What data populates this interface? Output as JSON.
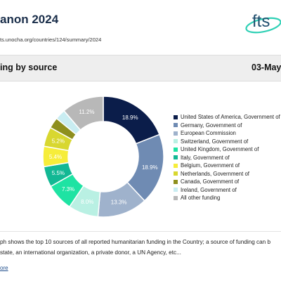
{
  "page": {
    "title": "anon 2024",
    "url": "ts.unocha.org/countries/124/summary/2024",
    "logo_text": "fts"
  },
  "section": {
    "title": "ing by source",
    "date": "03-May-"
  },
  "chart_data": {
    "type": "pie",
    "donut": true,
    "title": "",
    "slices": [
      {
        "label": "United States of America, Government of",
        "value": 18.9,
        "color": "#0b1d4a"
      },
      {
        "label": "Germany, Government of",
        "value": 18.9,
        "color": "#6f8bb3"
      },
      {
        "label": "European Commission",
        "value": 13.3,
        "color": "#9fb2cc"
      },
      {
        "label": "Switzerland, Government of",
        "value": 8.0,
        "color": "#b9f0e3"
      },
      {
        "label": "United Kingdom, Government of",
        "value": 7.3,
        "color": "#1ee3a3"
      },
      {
        "label": "Italy, Government of",
        "value": 5.5,
        "color": "#12b894"
      },
      {
        "label": "Belgium, Government of",
        "value": 5.4,
        "color": "#f6ed3a"
      },
      {
        "label": "Netherlands, Government of",
        "value": 5.2,
        "color": "#d8d730"
      },
      {
        "label": "Canada, Government of",
        "value": 2.9,
        "color": "#8e8f1e"
      },
      {
        "label": "Ireland, Government of",
        "value": 2.8,
        "color": "#c9edf2"
      },
      {
        "label": "All other funding",
        "value": 11.2,
        "color": "#b8b8b8"
      }
    ],
    "data_labels": [
      {
        "slice": 0,
        "text": "18.9%"
      },
      {
        "slice": 1,
        "text": "18.9%"
      },
      {
        "slice": 2,
        "text": "13.3%"
      },
      {
        "slice": 3,
        "text": "8.0%"
      },
      {
        "slice": 4,
        "text": "7.3%"
      },
      {
        "slice": 5,
        "text": "5.5%"
      },
      {
        "slice": 6,
        "text": "5.4%"
      },
      {
        "slice": 7,
        "text": "5.2%"
      },
      {
        "slice": 10,
        "text": "11.2%"
      }
    ],
    "legend_position": "right"
  },
  "description": {
    "line1": "ph shows the top 10 sources of all reported humanitarian funding in the Country; a source of funding can b",
    "line2": " state, an international organization, a private donor, a UN Agency, etc..."
  },
  "more_link": "ore"
}
